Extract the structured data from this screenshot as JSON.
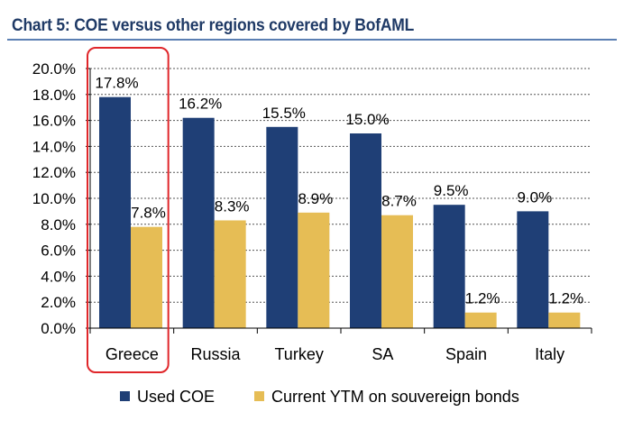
{
  "title": "Chart 5: COE versus other regions covered by BofAML",
  "chart_data": {
    "type": "bar",
    "title": "Chart 5: COE versus other regions covered by BofAML",
    "categories": [
      "Greece",
      "Russia",
      "Turkey",
      "SA",
      "Spain",
      "Italy"
    ],
    "series": [
      {
        "name": "Used COE",
        "color": "#1f3f76",
        "values": [
          17.8,
          16.2,
          15.5,
          15.0,
          9.5,
          9.0
        ],
        "labels": [
          "17.8%",
          "16.2%",
          "15.5%",
          "15.0%",
          "9.5%",
          "9.0%"
        ]
      },
      {
        "name": "Current YTM on souvereign bonds",
        "color": "#e6bd55",
        "values": [
          7.8,
          8.3,
          8.9,
          8.7,
          1.2,
          1.2
        ],
        "labels": [
          "7.8%",
          "8.3%",
          "8.9%",
          "8.7%",
          "1.2%",
          "1.2%"
        ]
      }
    ],
    "ylim": [
      0,
      20
    ],
    "yticks": [
      "0.0%",
      "2.0%",
      "4.0%",
      "6.0%",
      "8.0%",
      "10.0%",
      "12.0%",
      "14.0%",
      "16.0%",
      "18.0%",
      "20.0%"
    ],
    "ytick_values": [
      0,
      2,
      4,
      6,
      8,
      10,
      12,
      14,
      16,
      18,
      20
    ],
    "grid": true,
    "highlight_category": "Greece",
    "highlight_color": "#e0262a",
    "legend_position": "bottom"
  }
}
